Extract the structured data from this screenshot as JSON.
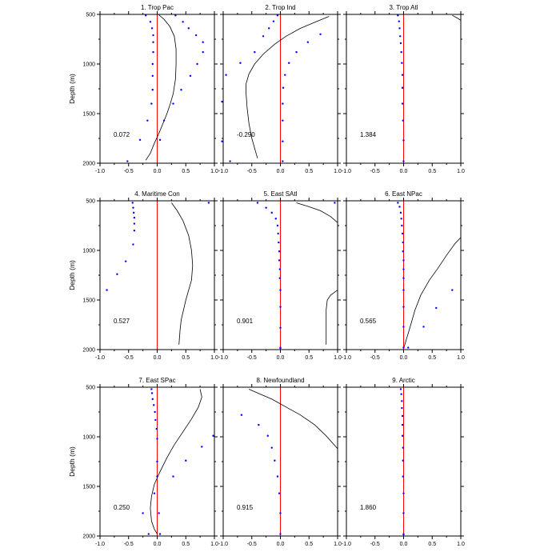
{
  "chart_data": [
    {
      "type": "line",
      "title": "1. Trop Pac",
      "annotation": "0.072",
      "xlim": [
        -1,
        1
      ],
      "ylim": [
        2000,
        500
      ],
      "y_inverted": true,
      "xticklabels": [
        "-1.0",
        "-0.5",
        "0.0",
        "0.5",
        "1.0"
      ],
      "yticklabels": [
        "500",
        "1000",
        "1500",
        "2000"
      ],
      "ylabel": "Depth (m)",
      "reference_line": {
        "x": 0,
        "color": "#ff0000"
      },
      "series": [
        {
          "style": "line",
          "color": "#000000",
          "x": [
            0.02,
            0.12,
            0.22,
            0.3,
            0.33,
            0.33,
            0.32,
            0.28,
            0.23,
            0.17,
            0.1,
            0.03,
            -0.05,
            -0.12,
            -0.2
          ],
          "y": [
            500,
            550,
            620,
            720,
            850,
            1000,
            1150,
            1300,
            1400,
            1500,
            1600,
            1700,
            1800,
            1900,
            1970
          ]
        },
        {
          "style": "dots",
          "color": "#0000ff",
          "x": [
            -0.2,
            -0.12,
            -0.09,
            -0.07,
            -0.07,
            -0.07,
            -0.08,
            -0.08,
            -0.08,
            -0.1,
            -0.17,
            -0.3,
            -0.52
          ],
          "y": [
            510,
            575,
            640,
            710,
            780,
            880,
            1000,
            1120,
            1260,
            1400,
            1570,
            1765,
            1980
          ]
        },
        {
          "style": "dots",
          "color": "#0000ff",
          "x": [
            0.32,
            0.45,
            0.55,
            0.68,
            0.8,
            0.8,
            0.7,
            0.58,
            0.42,
            0.28,
            0.12,
            0.05
          ],
          "y": [
            510,
            575,
            640,
            710,
            780,
            880,
            1000,
            1120,
            1260,
            1400,
            1570,
            1765
          ]
        }
      ]
    },
    {
      "type": "line",
      "title": "2. Trop Ind",
      "annotation": "-0.290",
      "xlim": [
        -1,
        1
      ],
      "ylim": [
        2000,
        500
      ],
      "y_inverted": true,
      "xticklabels": [
        "-1.0",
        "-0.5",
        "0.0",
        "0.5",
        "1.0"
      ],
      "yticklabels": [
        "500",
        "1000",
        "1500",
        "2000"
      ],
      "reference_line": {
        "x": 0,
        "color": "#ff0000"
      },
      "series": [
        {
          "style": "line",
          "color": "#000000",
          "x": [
            0.85,
            0.6,
            0.35,
            0.1,
            -0.1,
            -0.3,
            -0.45,
            -0.55,
            -0.6,
            -0.6,
            -0.58,
            -0.55,
            -0.5,
            -0.45,
            -0.4
          ],
          "y": [
            520,
            580,
            640,
            720,
            800,
            900,
            1000,
            1100,
            1200,
            1300,
            1450,
            1600,
            1750,
            1850,
            1950
          ]
        },
        {
          "style": "dots",
          "color": "#0000ff",
          "x": [
            -0.05,
            -0.12,
            -0.2,
            -0.3,
            -0.45,
            -0.7,
            -0.95,
            -1.02,
            -1.02,
            -0.88
          ],
          "y": [
            510,
            570,
            640,
            720,
            880,
            990,
            1110,
            1380,
            1780,
            1980
          ]
        },
        {
          "style": "dots",
          "color": "#0000ff",
          "x": [
            0.7,
            0.48,
            0.28,
            0.15,
            0.08,
            0.05,
            0.04,
            0.04,
            0.04,
            0.04
          ],
          "y": [
            700,
            780,
            880,
            990,
            1110,
            1240,
            1400,
            1570,
            1780,
            1980
          ]
        }
      ]
    },
    {
      "type": "line",
      "title": "3. Trop Atl",
      "annotation": "1.384",
      "xlim": [
        -1,
        1
      ],
      "ylim": [
        2000,
        500
      ],
      "y_inverted": true,
      "xticklabels": [
        "-1.0",
        "-0.5",
        "0.0",
        "0.5",
        "1.0"
      ],
      "yticklabels": [
        "500",
        "1000",
        "1500",
        "2000"
      ],
      "reference_line": {
        "x": 0,
        "color": "#ff0000"
      },
      "series": [
        {
          "style": "line",
          "color": "#000000",
          "x": [
            0.85,
            0.95,
            1.0
          ],
          "y": [
            510,
            540,
            560
          ]
        },
        {
          "style": "dots",
          "color": "#0000ff",
          "x": [
            -0.1,
            -0.08,
            -0.07,
            -0.06,
            -0.05,
            -0.04,
            -0.03,
            -0.02,
            -0.02,
            -0.02,
            -0.01,
            0.0,
            0.0
          ],
          "y": [
            510,
            570,
            640,
            720,
            790,
            880,
            990,
            1110,
            1240,
            1400,
            1570,
            1770,
            1980
          ]
        }
      ]
    },
    {
      "type": "line",
      "title": "4. Maritime Con",
      "annotation": "0.527",
      "xlim": [
        -1,
        1
      ],
      "ylim": [
        2000,
        500
      ],
      "y_inverted": true,
      "xticklabels": [
        "-1.0",
        "-0.5",
        "0.0",
        "0.5",
        "1.0"
      ],
      "yticklabels": [
        "500",
        "1000",
        "1500",
        "2000"
      ],
      "ylabel": "Depth (m)",
      "reference_line": {
        "x": 0,
        "color": "#ff0000"
      },
      "series": [
        {
          "style": "line",
          "color": "#000000",
          "x": [
            0.25,
            0.35,
            0.45,
            0.55,
            0.6,
            0.62,
            0.6,
            0.55,
            0.5,
            0.46,
            0.42,
            0.4,
            0.38
          ],
          "y": [
            520,
            600,
            700,
            850,
            1000,
            1150,
            1300,
            1400,
            1500,
            1600,
            1700,
            1800,
            1950
          ]
        },
        {
          "style": "dots",
          "color": "#0000ff",
          "x": [
            0.9
          ],
          "y": [
            520
          ]
        },
        {
          "style": "dots",
          "color": "#0000ff",
          "x": [
            -0.43,
            -0.42,
            -0.41,
            -0.4,
            -0.4,
            -0.4,
            -0.42,
            -0.55,
            -0.7,
            -0.88
          ],
          "y": [
            520,
            570,
            620,
            670,
            730,
            800,
            940,
            1110,
            1240,
            1400
          ]
        }
      ]
    },
    {
      "type": "line",
      "title": "5. East SAtl",
      "annotation": "0.901",
      "xlim": [
        -1,
        1
      ],
      "ylim": [
        2000,
        500
      ],
      "y_inverted": true,
      "xticklabels": [
        "-1.0",
        "-0.5",
        "0.0",
        "0.5",
        "1.0"
      ],
      "yticklabels": [
        "500",
        "1000",
        "1500",
        "2000"
      ],
      "reference_line": {
        "x": 0,
        "color": "#ff0000"
      },
      "series": [
        {
          "style": "line",
          "color": "#000000",
          "x": [
            0.28,
            0.5,
            0.7,
            0.88,
            1.0
          ],
          "y": [
            520,
            560,
            600,
            660,
            720
          ]
        },
        {
          "style": "line",
          "color": "#000000",
          "x": [
            1.0,
            0.88,
            0.82,
            0.8,
            0.8,
            0.8,
            0.8
          ],
          "y": [
            1400,
            1450,
            1500,
            1600,
            1700,
            1800,
            1950
          ]
        },
        {
          "style": "dots",
          "color": "#0000ff",
          "x": [
            0.95
          ],
          "y": [
            520
          ]
        },
        {
          "style": "dots",
          "color": "#0000ff",
          "x": [
            -0.4,
            -0.25,
            -0.15,
            -0.08,
            -0.05,
            -0.04,
            -0.03,
            -0.02,
            -0.02,
            -0.01,
            -0.01,
            0.0,
            0.0,
            0.0,
            0.0,
            0.0
          ],
          "y": [
            520,
            570,
            620,
            680,
            750,
            830,
            920,
            1010,
            1100,
            1190,
            1280,
            1400,
            1570,
            1780,
            1980,
            1985
          ]
        }
      ]
    },
    {
      "type": "line",
      "title": "6. East NPac",
      "annotation": "0.565",
      "xlim": [
        -1,
        1
      ],
      "ylim": [
        2000,
        500
      ],
      "y_inverted": true,
      "xticklabels": [
        "-1.0",
        "-0.5",
        "0.0",
        "0.5",
        "1.0"
      ],
      "yticklabels": [
        "500",
        "1000",
        "1500",
        "2000"
      ],
      "reference_line": {
        "x": 0,
        "color": "#ff0000"
      },
      "series": [
        {
          "style": "line",
          "color": "#000000",
          "x": [
            0.0,
            0.1,
            0.2,
            0.3,
            0.45,
            0.6,
            0.75,
            0.9,
            1.0
          ],
          "y": [
            1990,
            1800,
            1600,
            1450,
            1300,
            1180,
            1050,
            930,
            870
          ]
        },
        {
          "style": "dots",
          "color": "#0000ff",
          "x": [
            -0.1,
            -0.07,
            -0.05,
            -0.04,
            -0.03,
            -0.02,
            -0.01,
            -0.01,
            0.0,
            0.0,
            0.0,
            0.0,
            0.0,
            0.0,
            0.0
          ],
          "y": [
            520,
            560,
            620,
            680,
            750,
            830,
            920,
            1010,
            1100,
            1190,
            1280,
            1400,
            1570,
            1770,
            1980
          ]
        },
        {
          "style": "dots",
          "color": "#0000ff",
          "x": [
            0.85,
            0.57,
            0.35,
            0.08
          ],
          "y": [
            1400,
            1580,
            1770,
            1980
          ]
        }
      ]
    },
    {
      "type": "line",
      "title": "7. East SPac",
      "annotation": "0.250",
      "xlim": [
        -1,
        1
      ],
      "ylim": [
        2000,
        500
      ],
      "y_inverted": true,
      "xticklabels": [
        "-1.0",
        "-0.5",
        "0.0",
        "0.5",
        "1.0"
      ],
      "yticklabels": [
        "500",
        "1000",
        "1500",
        "2000"
      ],
      "ylabel": "Depth (m)",
      "reference_line": {
        "x": 0,
        "color": "#ff0000"
      },
      "series": [
        {
          "style": "line",
          "color": "#000000",
          "x": [
            0.75,
            0.78,
            0.72,
            0.6,
            0.45,
            0.3,
            0.18,
            0.05,
            -0.05,
            -0.1,
            -0.12,
            -0.1,
            -0.05,
            0.0
          ],
          "y": [
            520,
            600,
            700,
            820,
            950,
            1080,
            1200,
            1350,
            1480,
            1600,
            1720,
            1850,
            1930,
            1980
          ]
        },
        {
          "style": "dots",
          "color": "#0000ff",
          "x": [
            -0.1,
            -0.09,
            -0.08,
            -0.06,
            -0.04,
            -0.03,
            -0.01,
            0.0,
            0.0,
            0.0,
            -0.05,
            -0.25,
            -0.15
          ],
          "y": [
            520,
            560,
            620,
            680,
            750,
            830,
            920,
            1020,
            1250,
            1400,
            1570,
            1770,
            1980
          ]
        },
        {
          "style": "dots",
          "color": "#0000ff",
          "x": [
            0.98,
            0.78,
            0.5,
            0.28,
            0.03,
            0.05
          ],
          "y": [
            990,
            1100,
            1240,
            1400,
            1770,
            1980
          ]
        }
      ]
    },
    {
      "type": "line",
      "title": "8. Newfoundland",
      "annotation": "0.915",
      "xlim": [
        -1,
        1
      ],
      "ylim": [
        2000,
        500
      ],
      "y_inverted": true,
      "xticklabels": [
        "-1.0",
        "-0.5",
        "0.0",
        "0.5",
        "1.0"
      ],
      "yticklabels": [
        "500",
        "1000",
        "1500",
        "2000"
      ],
      "reference_line": {
        "x": 0,
        "color": "#ff0000"
      },
      "series": [
        {
          "style": "line",
          "color": "#000000",
          "x": [
            -0.55,
            -0.35,
            -0.15,
            0.1,
            0.35,
            0.6,
            0.8,
            1.0
          ],
          "y": [
            520,
            570,
            620,
            700,
            780,
            880,
            990,
            1120
          ]
        },
        {
          "style": "dots",
          "color": "#0000ff",
          "x": [
            -0.68,
            -0.38,
            -0.22,
            -0.15,
            -0.1,
            -0.05,
            -0.02,
            0.0,
            0.0
          ],
          "y": [
            780,
            880,
            990,
            1110,
            1240,
            1400,
            1570,
            1770,
            1980
          ]
        }
      ]
    },
    {
      "type": "line",
      "title": "9. Arctic",
      "annotation": "1.860",
      "xlim": [
        -1,
        1
      ],
      "ylim": [
        2000,
        500
      ],
      "y_inverted": true,
      "xticklabels": [
        "-1.0",
        "-0.5",
        "0.0",
        "0.5",
        "1.0"
      ],
      "yticklabels": [
        "500",
        "1000",
        "1500",
        "2000"
      ],
      "reference_line": {
        "x": 0,
        "color": "#ff0000"
      },
      "series": [
        {
          "style": "dots",
          "color": "#0000ff",
          "x": [
            -0.05,
            -0.04,
            -0.03,
            -0.03,
            -0.02,
            -0.02,
            -0.02,
            -0.01,
            -0.01,
            -0.01,
            0.0,
            0.0,
            0.0,
            0.0
          ],
          "y": [
            520,
            570,
            640,
            710,
            790,
            880,
            990,
            1110,
            1240,
            1400,
            1570,
            1770,
            1980,
            1985
          ]
        }
      ]
    }
  ]
}
